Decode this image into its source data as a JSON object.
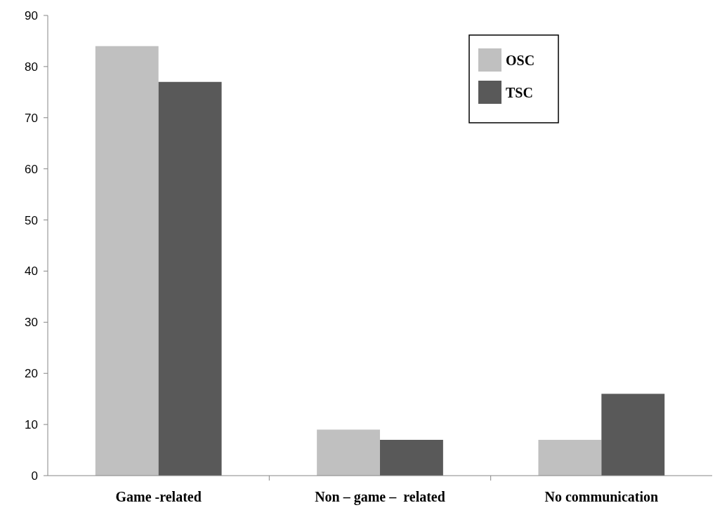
{
  "chart_data": {
    "type": "bar",
    "categories": [
      "Game -related",
      "Non – game –  related",
      "No communication"
    ],
    "series": [
      {
        "name": "OSC",
        "color": "#c0c0c0",
        "values": [
          84,
          9,
          7
        ]
      },
      {
        "name": "TSC",
        "color": "#595959",
        "values": [
          77,
          7,
          16
        ]
      }
    ],
    "ylim": [
      0,
      90
    ],
    "yticks": [
      0,
      10,
      20,
      30,
      40,
      50,
      60,
      70,
      80,
      90
    ],
    "grid": false,
    "legend": "top right"
  }
}
